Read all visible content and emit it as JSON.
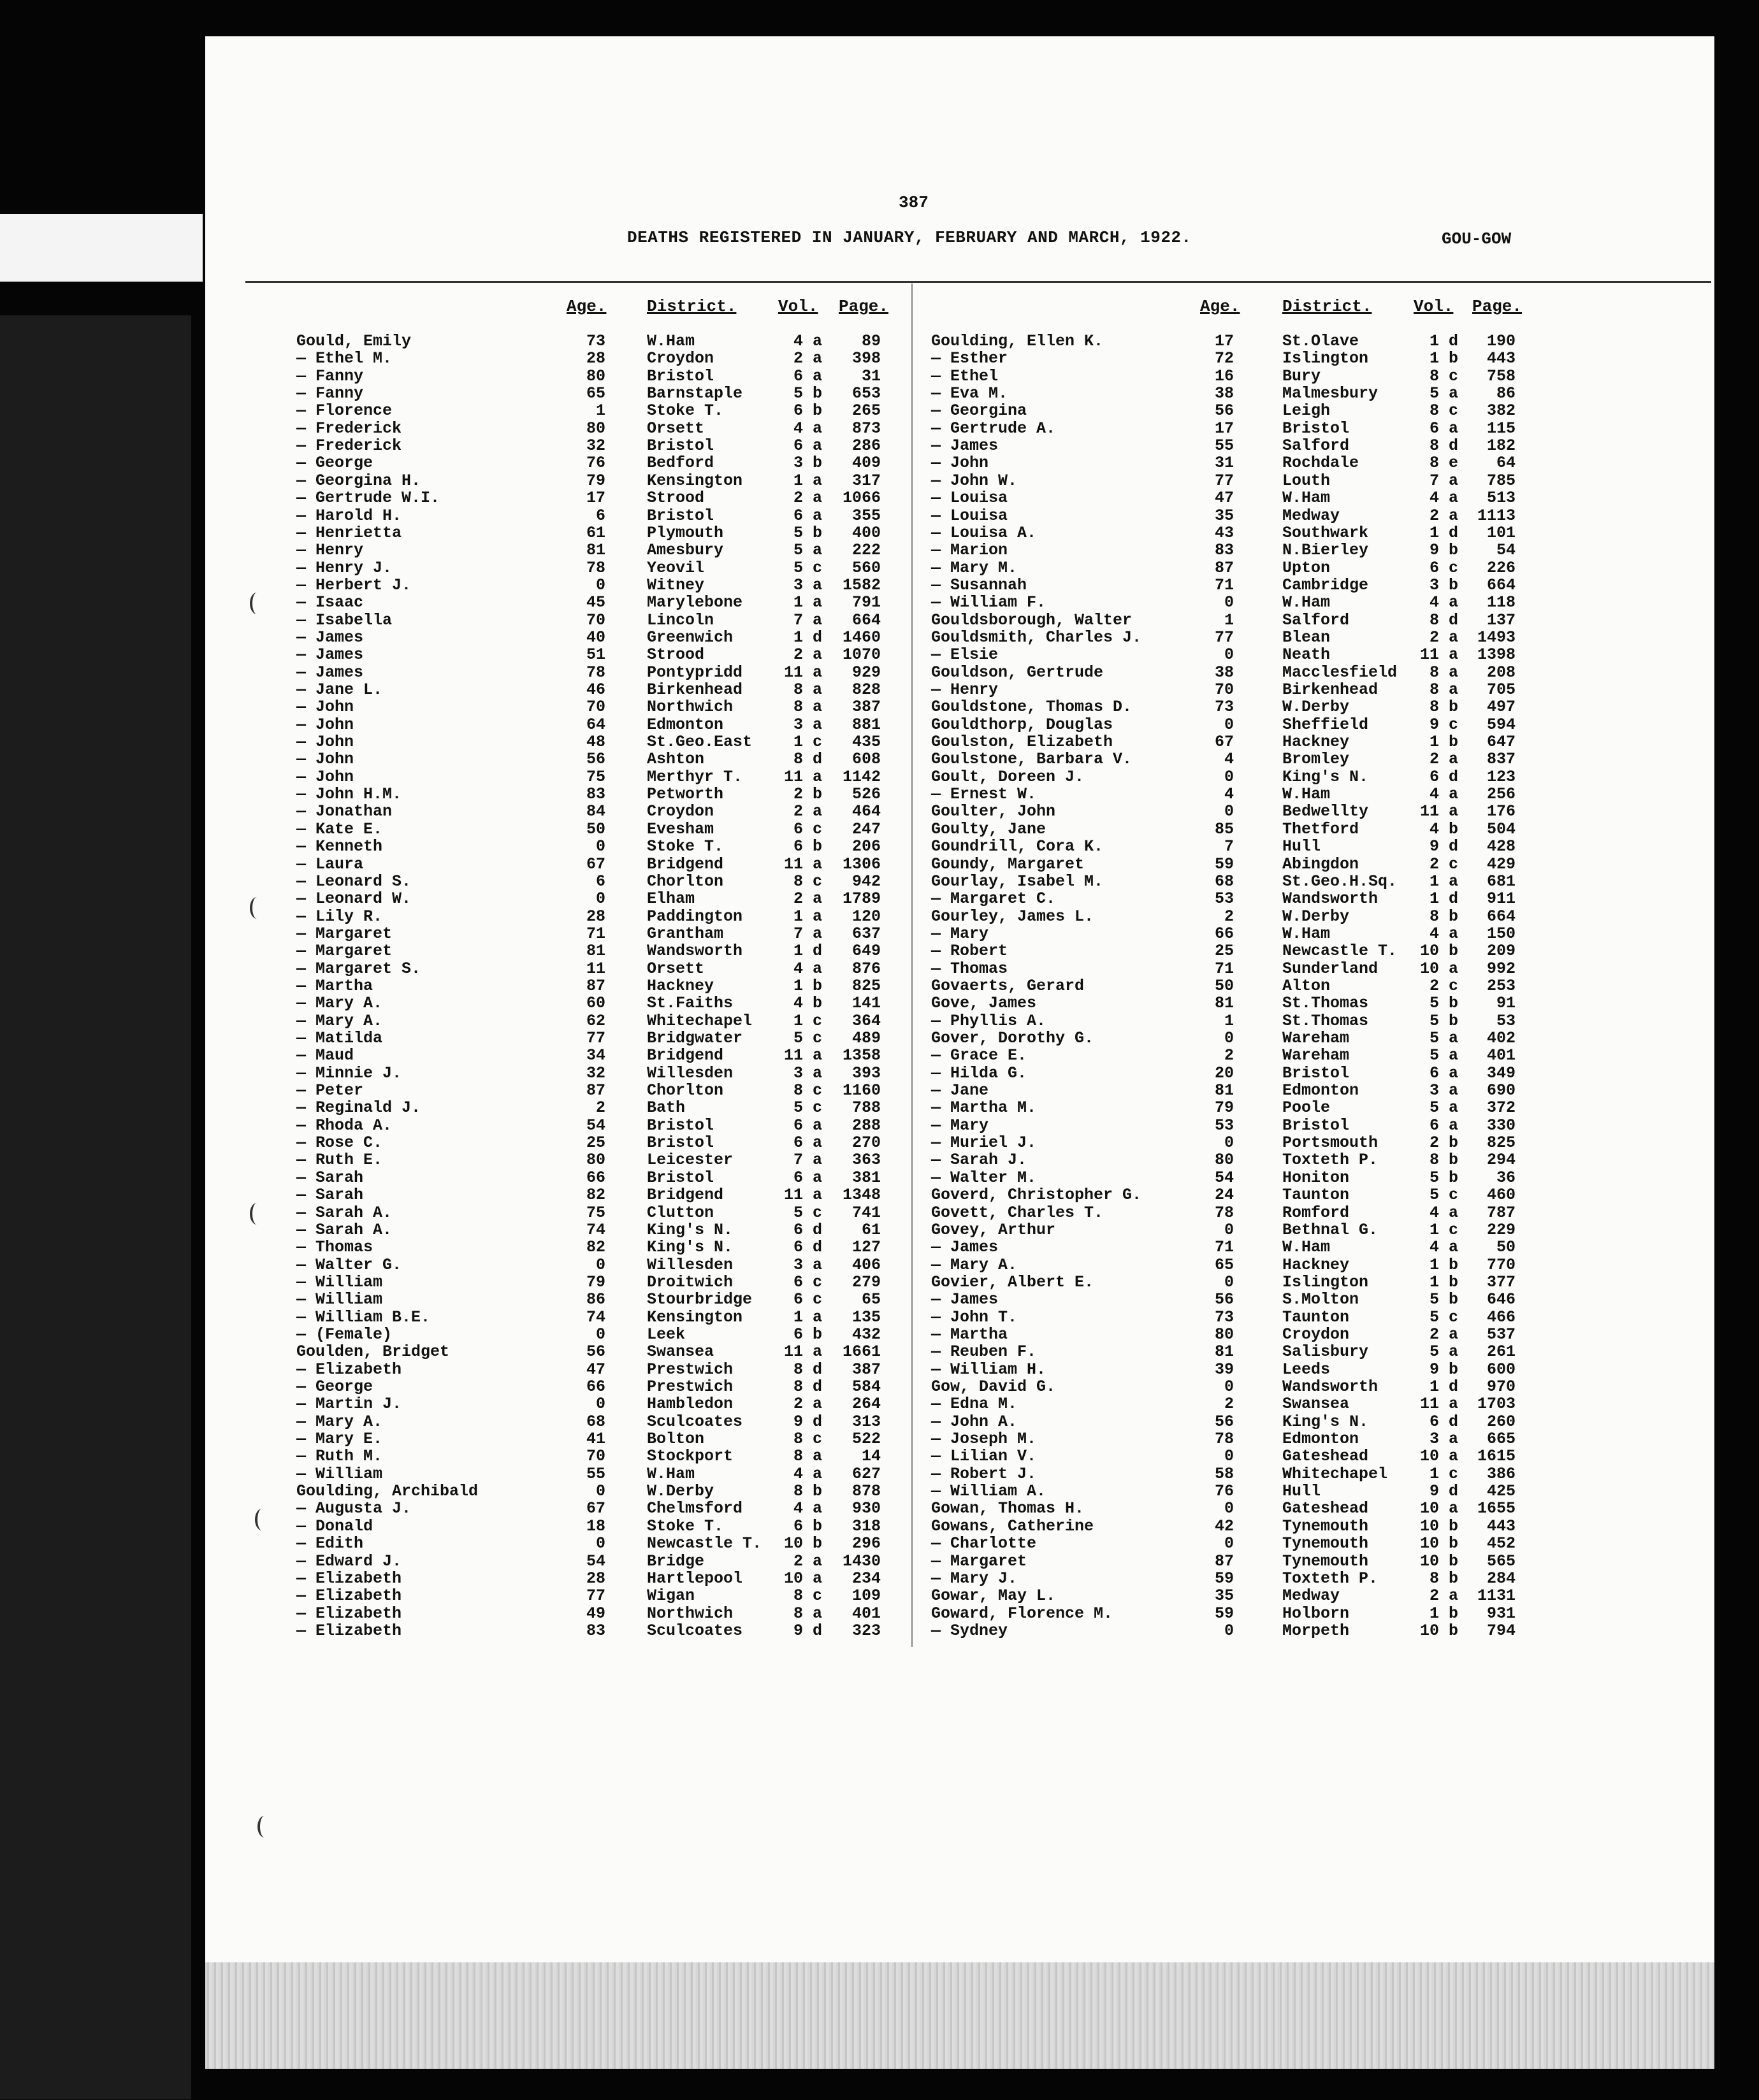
{
  "header": {
    "page_number": "387",
    "title": "DEATHS REGISTERED IN JANUARY, FEBRUARY AND MARCH, 1922.",
    "surname_range": "GOU-GOW"
  },
  "column_headers": {
    "age": "Age.",
    "district": "District.",
    "vol": "Vol.",
    "page": "Page."
  },
  "left_column": [
    [
      "Gould, Emily",
      "73",
      "W.Ham",
      "4 a",
      "89"
    ],
    [
      "— Ethel M.",
      "28",
      "Croydon",
      "2 a",
      "398"
    ],
    [
      "— Fanny",
      "80",
      "Bristol",
      "6 a",
      "31"
    ],
    [
      "— Fanny",
      "65",
      "Barnstaple",
      "5 b",
      "653"
    ],
    [
      "— Florence",
      "1",
      "Stoke T.",
      "6 b",
      "265"
    ],
    [
      "— Frederick",
      "80",
      "Orsett",
      "4 a",
      "873"
    ],
    [
      "— Frederick",
      "32",
      "Bristol",
      "6 a",
      "286"
    ],
    [
      "— George",
      "76",
      "Bedford",
      "3 b",
      "409"
    ],
    [
      "— Georgina H.",
      "79",
      "Kensington",
      "1 a",
      "317"
    ],
    [
      "— Gertrude W.I.",
      "17",
      "Strood",
      "2 a",
      "1066"
    ],
    [
      "— Harold H.",
      "6",
      "Bristol",
      "6 a",
      "355"
    ],
    [
      "— Henrietta",
      "61",
      "Plymouth",
      "5 b",
      "400"
    ],
    [
      "— Henry",
      "81",
      "Amesbury",
      "5 a",
      "222"
    ],
    [
      "— Henry J.",
      "78",
      "Yeovil",
      "5 c",
      "560"
    ],
    [
      "— Herbert J.",
      "0",
      "Witney",
      "3 a",
      "1582"
    ],
    [
      "— Isaac",
      "45",
      "Marylebone",
      "1 a",
      "791"
    ],
    [
      "— Isabella",
      "70",
      "Lincoln",
      "7 a",
      "664"
    ],
    [
      "— James",
      "40",
      "Greenwich",
      "1 d",
      "1460"
    ],
    [
      "— James",
      "51",
      "Strood",
      "2 a",
      "1070"
    ],
    [
      "— James",
      "78",
      "Pontypridd",
      "11 a",
      "929"
    ],
    [
      "— Jane L.",
      "46",
      "Birkenhead",
      "8 a",
      "828"
    ],
    [
      "— John",
      "70",
      "Northwich",
      "8 a",
      "387"
    ],
    [
      "— John",
      "64",
      "Edmonton",
      "3 a",
      "881"
    ],
    [
      "— John",
      "48",
      "St.Geo.East",
      "1 c",
      "435"
    ],
    [
      "— John",
      "56",
      "Ashton",
      "8 d",
      "608"
    ],
    [
      "— John",
      "75",
      "Merthyr T.",
      "11 a",
      "1142"
    ],
    [
      "— John H.M.",
      "83",
      "Petworth",
      "2 b",
      "526"
    ],
    [
      "— Jonathan",
      "84",
      "Croydon",
      "2 a",
      "464"
    ],
    [
      "— Kate E.",
      "50",
      "Evesham",
      "6 c",
      "247"
    ],
    [
      "— Kenneth",
      "0",
      "Stoke T.",
      "6 b",
      "206"
    ],
    [
      "— Laura",
      "67",
      "Bridgend",
      "11 a",
      "1306"
    ],
    [
      "— Leonard S.",
      "6",
      "Chorlton",
      "8 c",
      "942"
    ],
    [
      "— Leonard W.",
      "0",
      "Elham",
      "2 a",
      "1789"
    ],
    [
      "— Lily R.",
      "28",
      "Paddington",
      "1 a",
      "120"
    ],
    [
      "— Margaret",
      "71",
      "Grantham",
      "7 a",
      "637"
    ],
    [
      "— Margaret",
      "81",
      "Wandsworth",
      "1 d",
      "649"
    ],
    [
      "— Margaret S.",
      "11",
      "Orsett",
      "4 a",
      "876"
    ],
    [
      "— Martha",
      "87",
      "Hackney",
      "1 b",
      "825"
    ],
    [
      "— Mary A.",
      "60",
      "St.Faiths",
      "4 b",
      "141"
    ],
    [
      "— Mary A.",
      "62",
      "Whitechapel",
      "1 c",
      "364"
    ],
    [
      "— Matilda",
      "77",
      "Bridgwater",
      "5 c",
      "489"
    ],
    [
      "— Maud",
      "34",
      "Bridgend",
      "11 a",
      "1358"
    ],
    [
      "— Minnie J.",
      "32",
      "Willesden",
      "3 a",
      "393"
    ],
    [
      "— Peter",
      "87",
      "Chorlton",
      "8 c",
      "1160"
    ],
    [
      "— Reginald J.",
      "2",
      "Bath",
      "5 c",
      "788"
    ],
    [
      "— Rhoda A.",
      "54",
      "Bristol",
      "6 a",
      "288"
    ],
    [
      "— Rose C.",
      "25",
      "Bristol",
      "6 a",
      "270"
    ],
    [
      "— Ruth E.",
      "80",
      "Leicester",
      "7 a",
      "363"
    ],
    [
      "— Sarah",
      "66",
      "Bristol",
      "6 a",
      "381"
    ],
    [
      "— Sarah",
      "82",
      "Bridgend",
      "11 a",
      "1348"
    ],
    [
      "— Sarah A.",
      "75",
      "Clutton",
      "5 c",
      "741"
    ],
    [
      "— Sarah A.",
      "74",
      "King's N.",
      "6 d",
      "61"
    ],
    [
      "— Thomas",
      "82",
      "King's N.",
      "6 d",
      "127"
    ],
    [
      "— Walter G.",
      "0",
      "Willesden",
      "3 a",
      "406"
    ],
    [
      "— William",
      "79",
      "Droitwich",
      "6 c",
      "279"
    ],
    [
      "— William",
      "86",
      "Stourbridge",
      "6 c",
      "65"
    ],
    [
      "— William B.E.",
      "74",
      "Kensington",
      "1 a",
      "135"
    ],
    [
      "— (Female)",
      "0",
      "Leek",
      "6 b",
      "432"
    ],
    [
      "Goulden, Bridget",
      "56",
      "Swansea",
      "11 a",
      "1661"
    ],
    [
      "— Elizabeth",
      "47",
      "Prestwich",
      "8 d",
      "387"
    ],
    [
      "— George",
      "66",
      "Prestwich",
      "8 d",
      "584"
    ],
    [
      "— Martin J.",
      "0",
      "Hambledon",
      "2 a",
      "264"
    ],
    [
      "— Mary A.",
      "68",
      "Sculcoates",
      "9 d",
      "313"
    ],
    [
      "— Mary E.",
      "41",
      "Bolton",
      "8 c",
      "522"
    ],
    [
      "— Ruth M.",
      "70",
      "Stockport",
      "8 a",
      "14"
    ],
    [
      "— William",
      "55",
      "W.Ham",
      "4 a",
      "627"
    ],
    [
      "Goulding, Archibald",
      "0",
      "W.Derby",
      "8 b",
      "878"
    ],
    [
      "— Augusta J.",
      "67",
      "Chelmsford",
      "4 a",
      "930"
    ],
    [
      "— Donald",
      "18",
      "Stoke T.",
      "6 b",
      "318"
    ],
    [
      "— Edith",
      "0",
      "Newcastle T.",
      "10 b",
      "296"
    ],
    [
      "— Edward J.",
      "54",
      "Bridge",
      "2 a",
      "1430"
    ],
    [
      "— Elizabeth",
      "28",
      "Hartlepool",
      "10 a",
      "234"
    ],
    [
      "— Elizabeth",
      "77",
      "Wigan",
      "8 c",
      "109"
    ],
    [
      "— Elizabeth",
      "49",
      "Northwich",
      "8 a",
      "401"
    ],
    [
      "— Elizabeth",
      "83",
      "Sculcoates",
      "9 d",
      "323"
    ]
  ],
  "right_column": [
    [
      "Goulding, Ellen K.",
      "17",
      "St.Olave",
      "1 d",
      "190"
    ],
    [
      "— Esther",
      "72",
      "Islington",
      "1 b",
      "443"
    ],
    [
      "— Ethel",
      "16",
      "Bury",
      "8 c",
      "758"
    ],
    [
      "— Eva M.",
      "38",
      "Malmesbury",
      "5 a",
      "86"
    ],
    [
      "— Georgina",
      "56",
      "Leigh",
      "8 c",
      "382"
    ],
    [
      "— Gertrude A.",
      "17",
      "Bristol",
      "6 a",
      "115"
    ],
    [
      "— James",
      "55",
      "Salford",
      "8 d",
      "182"
    ],
    [
      "— John",
      "31",
      "Rochdale",
      "8 e",
      "64"
    ],
    [
      "— John W.",
      "77",
      "Louth",
      "7 a",
      "785"
    ],
    [
      "— Louisa",
      "47",
      "W.Ham",
      "4 a",
      "513"
    ],
    [
      "— Louisa",
      "35",
      "Medway",
      "2 a",
      "1113"
    ],
    [
      "— Louisa A.",
      "43",
      "Southwark",
      "1 d",
      "101"
    ],
    [
      "— Marion",
      "83",
      "N.Bierley",
      "9 b",
      "54"
    ],
    [
      "— Mary M.",
      "87",
      "Upton",
      "6 c",
      "226"
    ],
    [
      "— Susannah",
      "71",
      "Cambridge",
      "3 b",
      "664"
    ],
    [
      "— William F.",
      "0",
      "W.Ham",
      "4 a",
      "118"
    ],
    [
      "Gouldsborough, Walter",
      "1",
      "Salford",
      "8 d",
      "137"
    ],
    [
      "Gouldsmith, Charles J.",
      "77",
      "Blean",
      "2 a",
      "1493"
    ],
    [
      "— Elsie",
      "0",
      "Neath",
      "11 a",
      "1398"
    ],
    [
      "Gouldson, Gertrude",
      "38",
      "Macclesfield",
      "8 a",
      "208"
    ],
    [
      "— Henry",
      "70",
      "Birkenhead",
      "8 a",
      "705"
    ],
    [
      "Gouldstone, Thomas D.",
      "73",
      "W.Derby",
      "8 b",
      "497"
    ],
    [
      "Gouldthorp, Douglas",
      "0",
      "Sheffield",
      "9 c",
      "594"
    ],
    [
      "Goulston, Elizabeth",
      "67",
      "Hackney",
      "1 b",
      "647"
    ],
    [
      "Goulstone, Barbara V.",
      "4",
      "Bromley",
      "2 a",
      "837"
    ],
    [
      "Goult, Doreen J.",
      "0",
      "King's N.",
      "6 d",
      "123"
    ],
    [
      "— Ernest W.",
      "4",
      "W.Ham",
      "4 a",
      "256"
    ],
    [
      "Goulter, John",
      "0",
      "Bedwellty",
      "11 a",
      "176"
    ],
    [
      "Goulty, Jane",
      "85",
      "Thetford",
      "4 b",
      "504"
    ],
    [
      "Goundrill, Cora K.",
      "7",
      "Hull",
      "9 d",
      "428"
    ],
    [
      "Goundy, Margaret",
      "59",
      "Abingdon",
      "2 c",
      "429"
    ],
    [
      "Gourlay, Isabel M.",
      "68",
      "St.Geo.H.Sq.",
      "1 a",
      "681"
    ],
    [
      "— Margaret C.",
      "53",
      "Wandsworth",
      "1 d",
      "911"
    ],
    [
      "Gourley, James L.",
      "2",
      "W.Derby",
      "8 b",
      "664"
    ],
    [
      "— Mary",
      "66",
      "W.Ham",
      "4 a",
      "150"
    ],
    [
      "— Robert",
      "25",
      "Newcastle T.",
      "10 b",
      "209"
    ],
    [
      "— Thomas",
      "71",
      "Sunderland",
      "10 a",
      "992"
    ],
    [
      "Govaerts, Gerard",
      "50",
      "Alton",
      "2 c",
      "253"
    ],
    [
      "Gove, James",
      "81",
      "St.Thomas",
      "5 b",
      "91"
    ],
    [
      "— Phyllis A.",
      "1",
      "St.Thomas",
      "5 b",
      "53"
    ],
    [
      "Gover, Dorothy G.",
      "0",
      "Wareham",
      "5 a",
      "402"
    ],
    [
      "— Grace E.",
      "2",
      "Wareham",
      "5 a",
      "401"
    ],
    [
      "— Hilda G.",
      "20",
      "Bristol",
      "6 a",
      "349"
    ],
    [
      "— Jane",
      "81",
      "Edmonton",
      "3 a",
      "690"
    ],
    [
      "— Martha M.",
      "79",
      "Poole",
      "5 a",
      "372"
    ],
    [
      "— Mary",
      "53",
      "Bristol",
      "6 a",
      "330"
    ],
    [
      "— Muriel J.",
      "0",
      "Portsmouth",
      "2 b",
      "825"
    ],
    [
      "— Sarah J.",
      "80",
      "Toxteth P.",
      "8 b",
      "294"
    ],
    [
      "— Walter M.",
      "54",
      "Honiton",
      "5 b",
      "36"
    ],
    [
      "Goverd, Christopher G.",
      "24",
      "Taunton",
      "5 c",
      "460"
    ],
    [
      "Govett, Charles T.",
      "78",
      "Romford",
      "4 a",
      "787"
    ],
    [
      "Govey, Arthur",
      "0",
      "Bethnal G.",
      "1 c",
      "229"
    ],
    [
      "— James",
      "71",
      "W.Ham",
      "4 a",
      "50"
    ],
    [
      "— Mary A.",
      "65",
      "Hackney",
      "1 b",
      "770"
    ],
    [
      "Govier, Albert E.",
      "0",
      "Islington",
      "1 b",
      "377"
    ],
    [
      "— James",
      "56",
      "S.Molton",
      "5 b",
      "646"
    ],
    [
      "— John T.",
      "73",
      "Taunton",
      "5 c",
      "466"
    ],
    [
      "— Martha",
      "80",
      "Croydon",
      "2 a",
      "537"
    ],
    [
      "— Reuben F.",
      "81",
      "Salisbury",
      "5 a",
      "261"
    ],
    [
      "— William H.",
      "39",
      "Leeds",
      "9 b",
      "600"
    ],
    [
      "Gow, David G.",
      "0",
      "Wandsworth",
      "1 d",
      "970"
    ],
    [
      "— Edna M.",
      "2",
      "Swansea",
      "11 a",
      "1703"
    ],
    [
      "— John A.",
      "56",
      "King's N.",
      "6 d",
      "260"
    ],
    [
      "— Joseph M.",
      "78",
      "Edmonton",
      "3 a",
      "665"
    ],
    [
      "— Lilian V.",
      "0",
      "Gateshead",
      "10 a",
      "1615"
    ],
    [
      "— Robert J.",
      "58",
      "Whitechapel",
      "1 c",
      "386"
    ],
    [
      "— William A.",
      "76",
      "Hull",
      "9 d",
      "425"
    ],
    [
      "Gowan, Thomas H.",
      "0",
      "Gateshead",
      "10 a",
      "1655"
    ],
    [
      "Gowans, Catherine",
      "42",
      "Tynemouth",
      "10 b",
      "443"
    ],
    [
      "— Charlotte",
      "0",
      "Tynemouth",
      "10 b",
      "452"
    ],
    [
      "— Margaret",
      "87",
      "Tynemouth",
      "10 b",
      "565"
    ],
    [
      "— Mary J.",
      "59",
      "Toxteth P.",
      "8 b",
      "284"
    ],
    [
      "Gowar, May L.",
      "35",
      "Medway",
      "2 a",
      "1131"
    ],
    [
      "Goward, Florence M.",
      "59",
      "Holborn",
      "1 b",
      "931"
    ],
    [
      "— Sydney",
      "0",
      "Morpeth",
      "10 b",
      "794"
    ]
  ]
}
